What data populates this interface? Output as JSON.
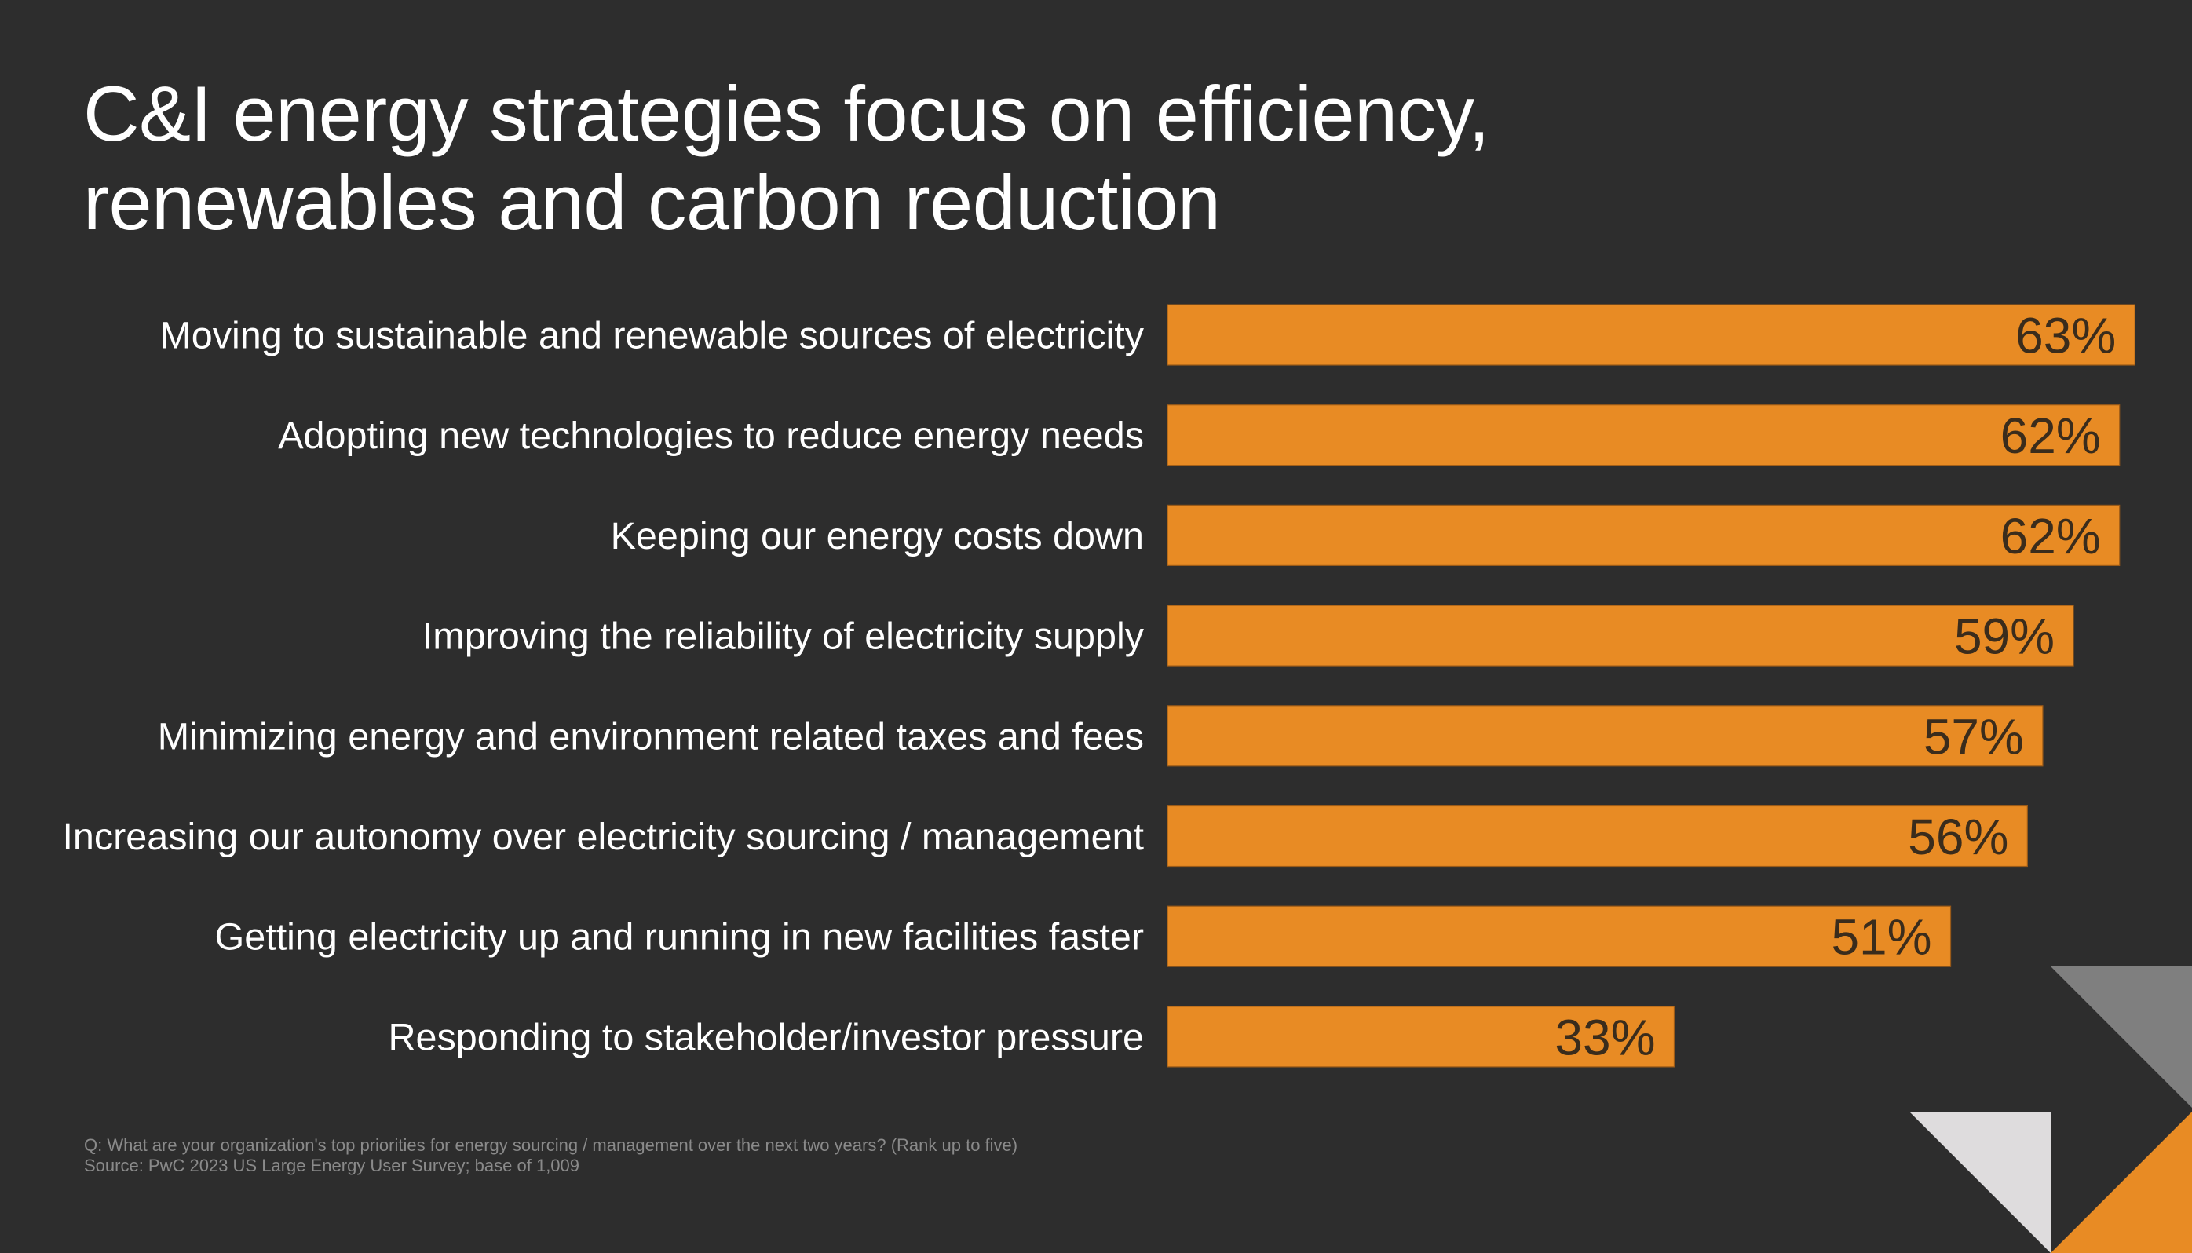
{
  "slide": {
    "title_lines": [
      "C&I energy strategies focus on efficiency,",
      "renewables and carbon reduction"
    ],
    "footnote": {
      "question": "Q:  What are your organization's top priorities for energy sourcing / management over the next two years? (Rank up to five)",
      "source": "Source: PwC 2023 US Large Energy User Survey; base of 1,009"
    },
    "colors": {
      "background": "#2d2d2d",
      "bar": "#e88b24",
      "value_text": "#3a2c1c",
      "label_text": "#ffffff",
      "footnote_text": "#8a8a8a",
      "decor_gray": "#7f7f7f",
      "decor_light": "#dedcdd",
      "decor_orange": "#e88b24"
    },
    "decorations": [
      "gray-triangle",
      "light-triangle",
      "orange-triangle"
    ]
  },
  "chart_data": {
    "type": "bar",
    "orientation": "horizontal",
    "title": "C&I energy strategies focus on efficiency, renewables and carbon reduction",
    "xlabel": "",
    "ylabel": "",
    "xlim": [
      0,
      63
    ],
    "grid": false,
    "legend": "none",
    "unit": "%",
    "categories": [
      "Moving to sustainable and renewable sources of electricity",
      "Adopting new technologies to reduce energy needs",
      "Keeping our energy costs down",
      "Improving the reliability of electricity supply",
      "Minimizing energy and environment related taxes and fees",
      "Increasing our autonomy over electricity sourcing / management",
      "Getting electricity up and running in new facilities faster",
      "Responding to stakeholder/investor pressure"
    ],
    "values": [
      63,
      62,
      62,
      59,
      57,
      56,
      51,
      33
    ],
    "value_labels": [
      "63%",
      "62%",
      "62%",
      "59%",
      "57%",
      "56%",
      "51%",
      "33%"
    ]
  }
}
